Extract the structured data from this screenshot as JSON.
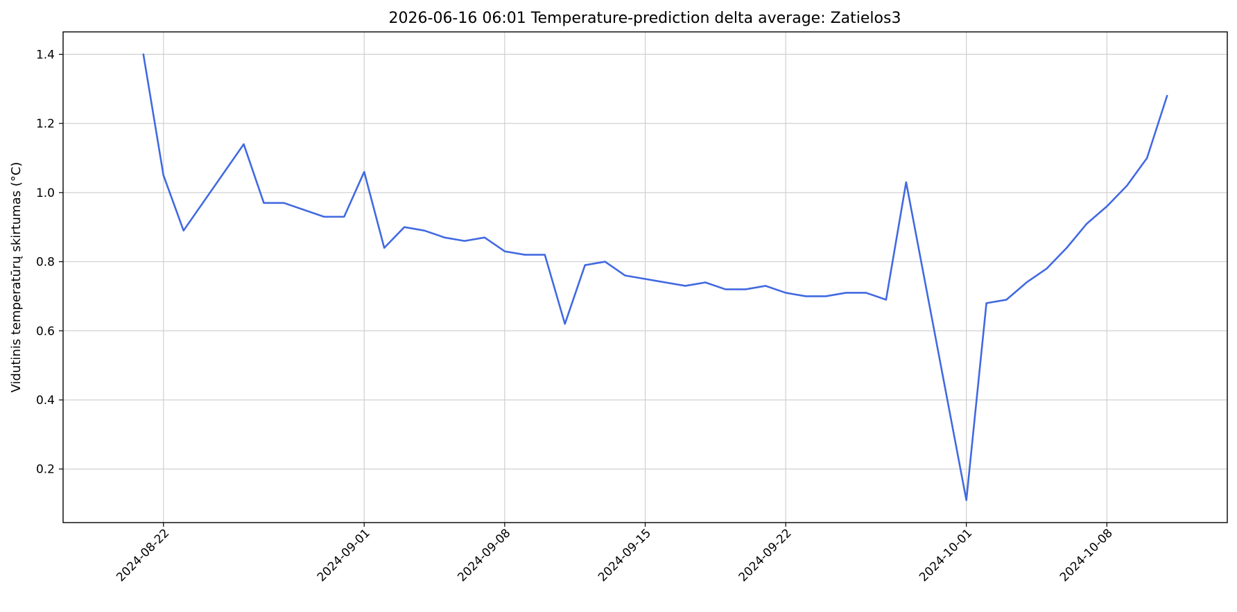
{
  "chart_data": {
    "type": "line",
    "title": "2026-06-16 06:01 Temperature-prediction delta average: Zatielos3",
    "xlabel": "",
    "ylabel": "Vidutinis temperatūrų skirtumas (°C)",
    "x_axis_type": "date",
    "xlim": [
      "2024-08-17",
      "2024-10-14"
    ],
    "ylim": [
      0.045,
      1.465
    ],
    "x_ticks": [
      "2024-08-22",
      "2024-09-01",
      "2024-09-08",
      "2024-09-15",
      "2024-09-22",
      "2024-10-01",
      "2024-10-08"
    ],
    "y_ticks": [
      0.2,
      0.4,
      0.6,
      0.8,
      1.0,
      1.2,
      1.4
    ],
    "y_tick_labels": [
      "0.2",
      "0.4",
      "0.6",
      "0.8",
      "1.0",
      "1.2",
      "1.4"
    ],
    "grid": true,
    "line_color": "#4169E1",
    "series": [
      {
        "x": [
          "2024-08-21",
          "2024-08-22",
          "2024-08-23",
          "2024-08-26",
          "2024-08-27",
          "2024-08-28",
          "2024-08-30",
          "2024-08-31",
          "2024-09-01",
          "2024-09-02",
          "2024-09-03",
          "2024-09-04",
          "2024-09-05",
          "2024-09-06",
          "2024-09-07",
          "2024-09-08",
          "2024-09-09",
          "2024-09-10",
          "2024-09-11",
          "2024-09-12",
          "2024-09-13",
          "2024-09-14",
          "2024-09-17",
          "2024-09-18",
          "2024-09-19",
          "2024-09-20",
          "2024-09-21",
          "2024-09-22",
          "2024-09-23",
          "2024-09-24",
          "2024-09-25",
          "2024-09-26",
          "2024-09-27",
          "2024-09-28",
          "2024-10-01",
          "2024-10-02",
          "2024-10-03",
          "2024-10-04",
          "2024-10-05",
          "2024-10-06",
          "2024-10-07",
          "2024-10-08",
          "2024-10-09",
          "2024-10-10",
          "2024-10-11"
        ],
        "values": [
          1.4,
          1.05,
          0.89,
          1.14,
          0.97,
          0.97,
          0.93,
          0.93,
          1.06,
          0.84,
          0.9,
          0.89,
          0.87,
          0.86,
          0.87,
          0.83,
          0.82,
          0.82,
          0.62,
          0.79,
          0.8,
          0.76,
          0.73,
          0.74,
          0.72,
          0.72,
          0.73,
          0.71,
          0.7,
          0.7,
          0.71,
          0.71,
          0.69,
          1.03,
          0.11,
          0.68,
          0.69,
          0.74,
          0.78,
          0.84,
          0.91,
          0.96,
          1.02,
          1.1,
          1.28
        ]
      }
    ]
  }
}
